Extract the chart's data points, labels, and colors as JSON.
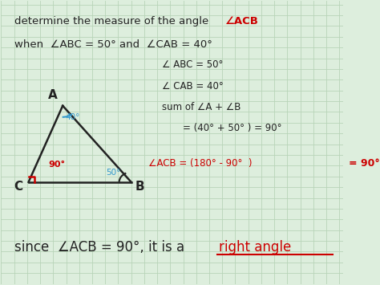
{
  "bg_color": "#ddeedd",
  "grid_color": "#b8d4b8",
  "text_color_black": "#222222",
  "text_color_red": "#cc0000",
  "text_color_blue": "#3399cc",
  "triangle": {
    "A": [
      0.18,
      0.63
    ],
    "B": [
      0.38,
      0.36
    ],
    "C": [
      0.08,
      0.36
    ]
  }
}
